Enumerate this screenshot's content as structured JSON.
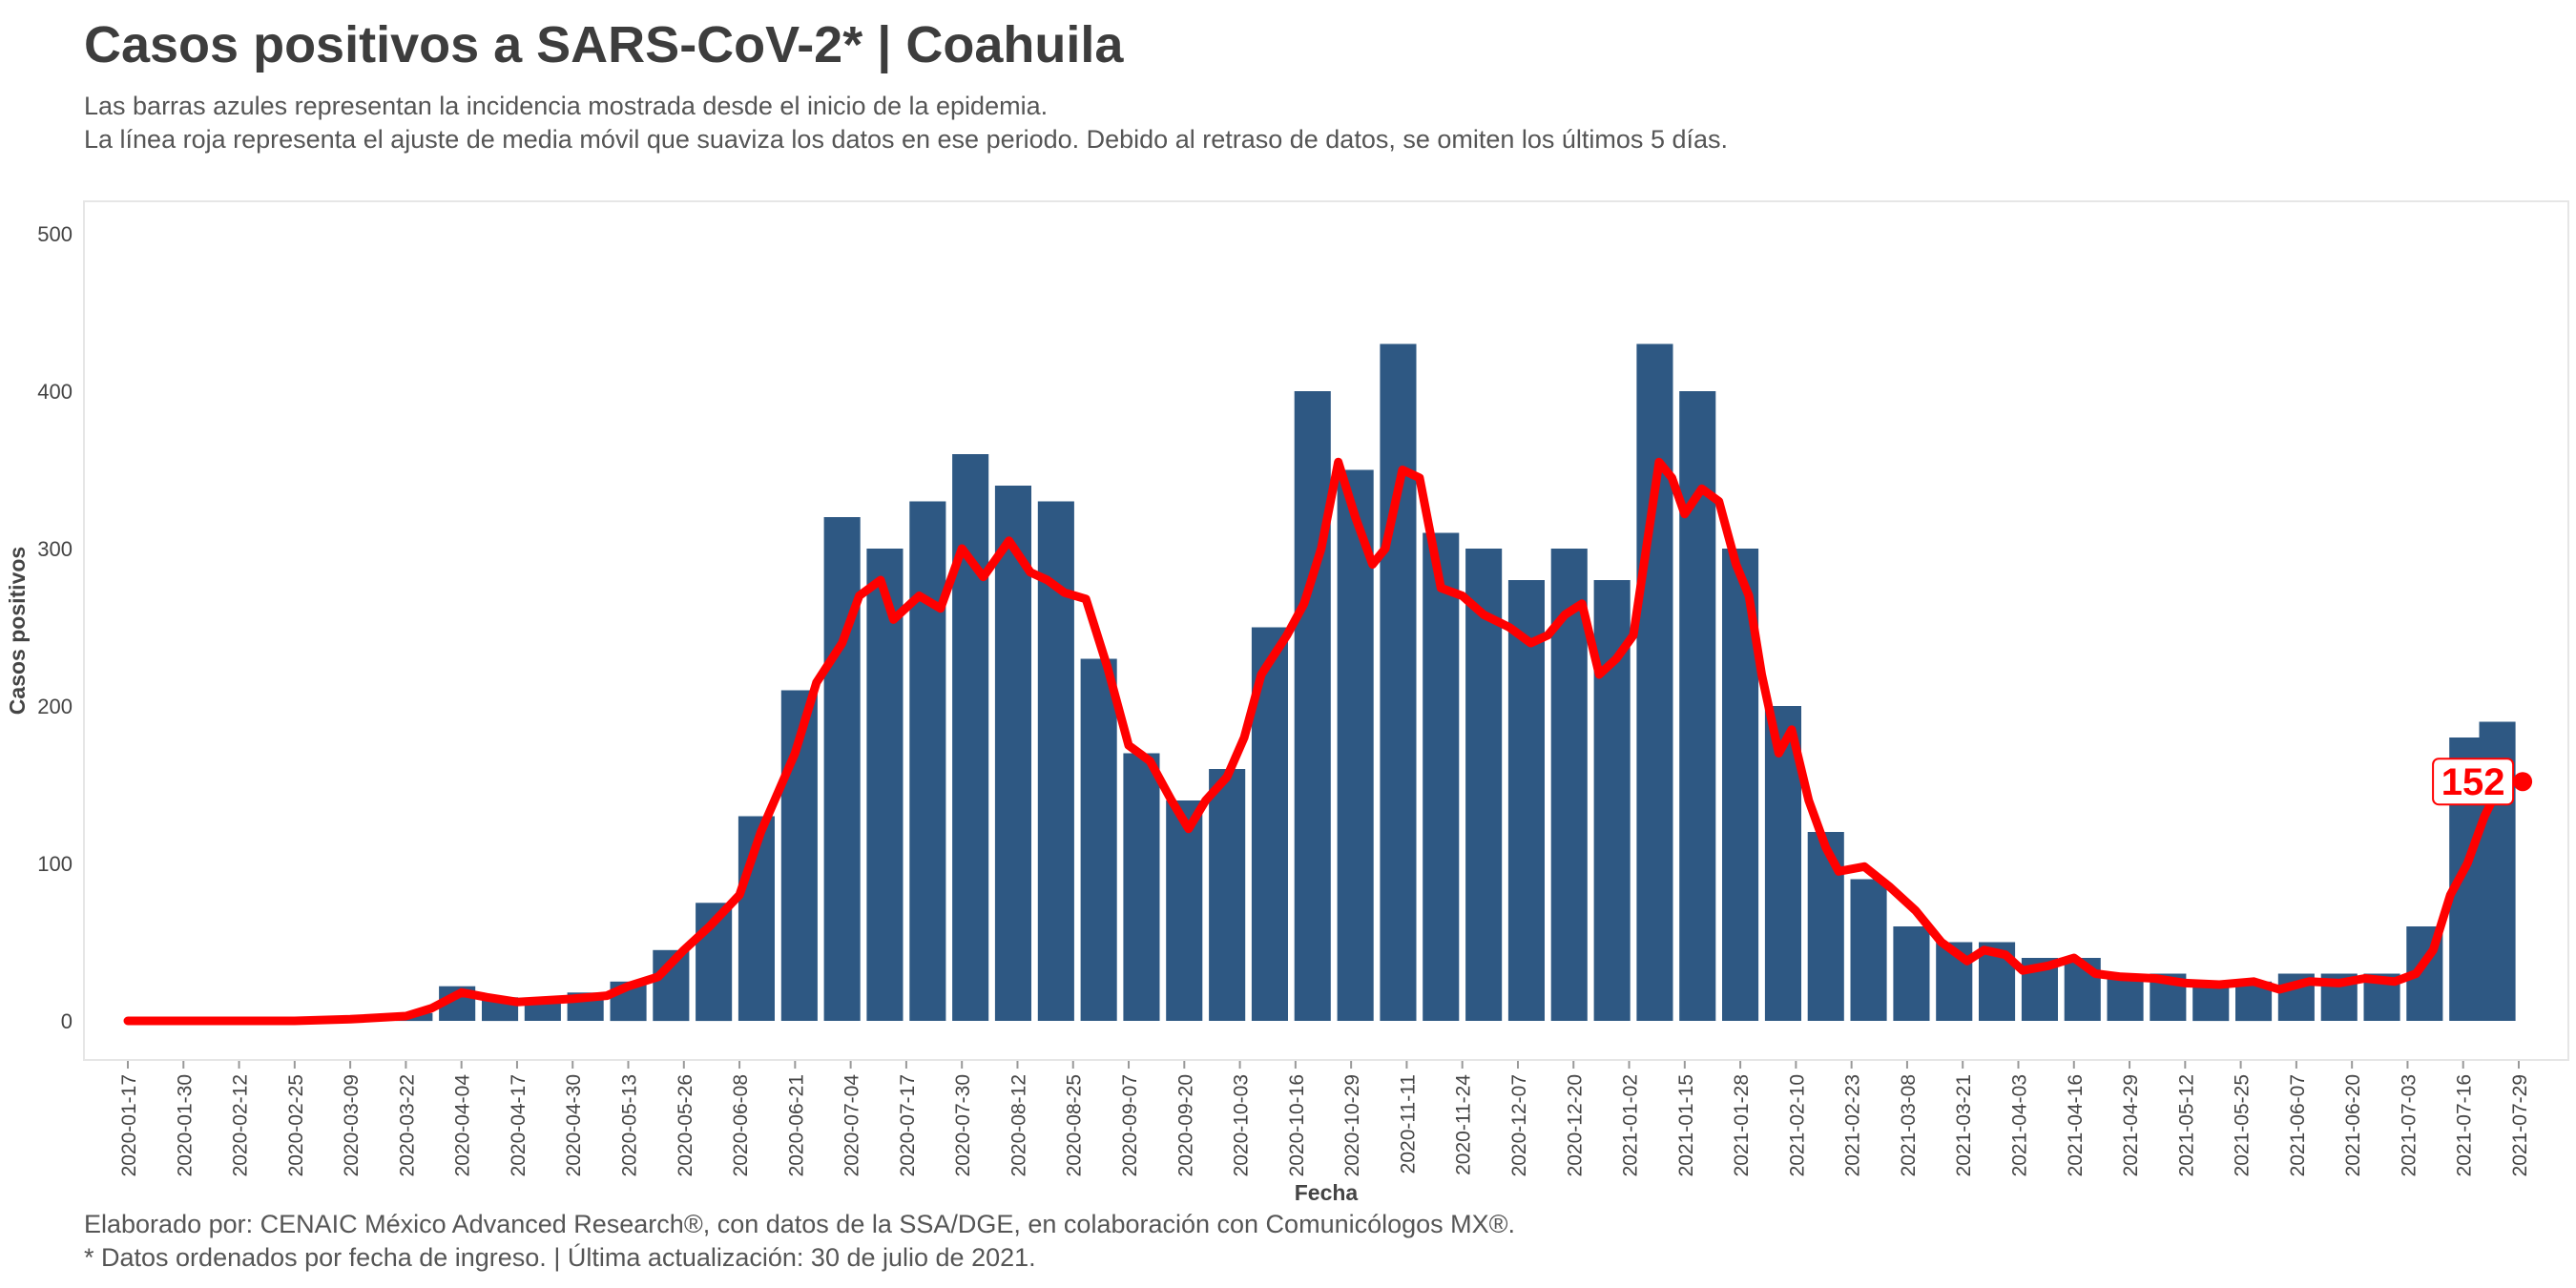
{
  "header": {
    "title": "Casos positivos a SARS-CoV-2* | Coahuila",
    "subtitle_1": "Las barras azules representan la incidencia mostrada desde el inicio de la epidemia.",
    "subtitle_2": "La línea roja representa el ajuste de media móvil que suaviza los datos en ese periodo. Debido al retraso de datos, se omiten los últimos 5 días."
  },
  "footer": {
    "caption_1": "Elaborado por: CENAIC México Advanced Research®, con datos de la SSA/DGE, en colaboración con Comunicólogos MX®.",
    "caption_2": "* Datos ordenados por fecha de ingreso. | Última actualización: 30 de julio de 2021."
  },
  "colors": {
    "bars": "#2e5883",
    "line": "#ff0000",
    "frame": "#e6e6e6",
    "text": "#444444"
  },
  "chart_data": {
    "type": "bar",
    "title": "Casos positivos a SARS-CoV-2* | Coahuila",
    "xlabel": "Fecha",
    "ylabel": "Casos positivos",
    "ylim": [
      0,
      520
    ],
    "yticks": [
      0,
      100,
      200,
      300,
      400,
      500
    ],
    "x_start": "2020-01-17",
    "x_end": "2021-07-29",
    "xticks": [
      "2020-01-17",
      "2020-01-30",
      "2020-02-12",
      "2020-02-25",
      "2020-03-09",
      "2020-03-22",
      "2020-04-04",
      "2020-04-17",
      "2020-04-30",
      "2020-05-13",
      "2020-05-26",
      "2020-06-08",
      "2020-06-21",
      "2020-07-04",
      "2020-07-17",
      "2020-07-30",
      "2020-08-12",
      "2020-08-25",
      "2020-09-07",
      "2020-09-20",
      "2020-10-03",
      "2020-10-16",
      "2020-10-29",
      "2020-11-11",
      "2020-11-24",
      "2020-12-07",
      "2020-12-20",
      "2021-01-02",
      "2021-01-15",
      "2021-01-28",
      "2021-02-10",
      "2021-02-23",
      "2021-03-08",
      "2021-03-21",
      "2021-04-03",
      "2021-04-16",
      "2021-04-29",
      "2021-05-12",
      "2021-05-25",
      "2021-06-07",
      "2021-06-20",
      "2021-07-03",
      "2021-07-16",
      "2021-07-29"
    ],
    "bars_approx_sampled_every_10_days": [
      {
        "date": "2020-03-24",
        "value": 5
      },
      {
        "date": "2020-04-03",
        "value": 22
      },
      {
        "date": "2020-04-13",
        "value": 15
      },
      {
        "date": "2020-04-23",
        "value": 12
      },
      {
        "date": "2020-05-03",
        "value": 18
      },
      {
        "date": "2020-05-13",
        "value": 25
      },
      {
        "date": "2020-05-23",
        "value": 45
      },
      {
        "date": "2020-06-02",
        "value": 75
      },
      {
        "date": "2020-06-12",
        "value": 130
      },
      {
        "date": "2020-06-22",
        "value": 210
      },
      {
        "date": "2020-07-02",
        "value": 320
      },
      {
        "date": "2020-07-12",
        "value": 300
      },
      {
        "date": "2020-07-22",
        "value": 330
      },
      {
        "date": "2020-08-01",
        "value": 360
      },
      {
        "date": "2020-08-11",
        "value": 340
      },
      {
        "date": "2020-08-21",
        "value": 330
      },
      {
        "date": "2020-08-31",
        "value": 230
      },
      {
        "date": "2020-09-10",
        "value": 170
      },
      {
        "date": "2020-09-20",
        "value": 140
      },
      {
        "date": "2020-09-30",
        "value": 160
      },
      {
        "date": "2020-10-10",
        "value": 250
      },
      {
        "date": "2020-10-20",
        "value": 400
      },
      {
        "date": "2020-10-30",
        "value": 350
      },
      {
        "date": "2020-11-09",
        "value": 430
      },
      {
        "date": "2020-11-19",
        "value": 310
      },
      {
        "date": "2020-11-29",
        "value": 300
      },
      {
        "date": "2020-12-09",
        "value": 280
      },
      {
        "date": "2020-12-19",
        "value": 300
      },
      {
        "date": "2020-12-29",
        "value": 280
      },
      {
        "date": "2021-01-08",
        "value": 430
      },
      {
        "date": "2021-01-18",
        "value": 400
      },
      {
        "date": "2021-01-28",
        "value": 300
      },
      {
        "date": "2021-02-07",
        "value": 200
      },
      {
        "date": "2021-02-17",
        "value": 120
      },
      {
        "date": "2021-02-27",
        "value": 90
      },
      {
        "date": "2021-03-09",
        "value": 60
      },
      {
        "date": "2021-03-19",
        "value": 50
      },
      {
        "date": "2021-03-29",
        "value": 50
      },
      {
        "date": "2021-04-08",
        "value": 40
      },
      {
        "date": "2021-04-18",
        "value": 40
      },
      {
        "date": "2021-04-28",
        "value": 30
      },
      {
        "date": "2021-05-08",
        "value": 30
      },
      {
        "date": "2021-05-18",
        "value": 25
      },
      {
        "date": "2021-05-28",
        "value": 25
      },
      {
        "date": "2021-06-07",
        "value": 30
      },
      {
        "date": "2021-06-17",
        "value": 30
      },
      {
        "date": "2021-06-27",
        "value": 30
      },
      {
        "date": "2021-07-07",
        "value": 60
      },
      {
        "date": "2021-07-17",
        "value": 180
      },
      {
        "date": "2021-07-24",
        "value": 190
      }
    ],
    "moving_average": [
      {
        "date": "2020-01-17",
        "value": 0
      },
      {
        "date": "2020-02-25",
        "value": 0
      },
      {
        "date": "2020-03-09",
        "value": 1
      },
      {
        "date": "2020-03-22",
        "value": 3
      },
      {
        "date": "2020-03-28",
        "value": 8
      },
      {
        "date": "2020-04-04",
        "value": 18
      },
      {
        "date": "2020-04-10",
        "value": 15
      },
      {
        "date": "2020-04-17",
        "value": 12
      },
      {
        "date": "2020-04-30",
        "value": 14
      },
      {
        "date": "2020-05-08",
        "value": 16
      },
      {
        "date": "2020-05-13",
        "value": 22
      },
      {
        "date": "2020-05-20",
        "value": 28
      },
      {
        "date": "2020-05-26",
        "value": 45
      },
      {
        "date": "2020-06-01",
        "value": 60
      },
      {
        "date": "2020-06-08",
        "value": 80
      },
      {
        "date": "2020-06-13",
        "value": 120
      },
      {
        "date": "2020-06-21",
        "value": 170
      },
      {
        "date": "2020-06-26",
        "value": 215
      },
      {
        "date": "2020-07-02",
        "value": 240
      },
      {
        "date": "2020-07-06",
        "value": 270
      },
      {
        "date": "2020-07-11",
        "value": 280
      },
      {
        "date": "2020-07-14",
        "value": 255
      },
      {
        "date": "2020-07-20",
        "value": 270
      },
      {
        "date": "2020-07-25",
        "value": 262
      },
      {
        "date": "2020-07-30",
        "value": 300
      },
      {
        "date": "2020-08-04",
        "value": 282
      },
      {
        "date": "2020-08-10",
        "value": 305
      },
      {
        "date": "2020-08-15",
        "value": 285
      },
      {
        "date": "2020-08-19",
        "value": 280
      },
      {
        "date": "2020-08-23",
        "value": 272
      },
      {
        "date": "2020-08-28",
        "value": 268
      },
      {
        "date": "2020-09-02",
        "value": 225
      },
      {
        "date": "2020-09-07",
        "value": 175
      },
      {
        "date": "2020-09-12",
        "value": 165
      },
      {
        "date": "2020-09-17",
        "value": 140
      },
      {
        "date": "2020-09-21",
        "value": 122
      },
      {
        "date": "2020-09-25",
        "value": 140
      },
      {
        "date": "2020-09-30",
        "value": 155
      },
      {
        "date": "2020-10-04",
        "value": 180
      },
      {
        "date": "2020-10-08",
        "value": 220
      },
      {
        "date": "2020-10-14",
        "value": 245
      },
      {
        "date": "2020-10-18",
        "value": 265
      },
      {
        "date": "2020-10-22",
        "value": 300
      },
      {
        "date": "2020-10-26",
        "value": 355
      },
      {
        "date": "2020-10-30",
        "value": 320
      },
      {
        "date": "2020-11-03",
        "value": 290
      },
      {
        "date": "2020-11-06",
        "value": 300
      },
      {
        "date": "2020-11-10",
        "value": 350
      },
      {
        "date": "2020-11-14",
        "value": 345
      },
      {
        "date": "2020-11-19",
        "value": 275
      },
      {
        "date": "2020-11-24",
        "value": 270
      },
      {
        "date": "2020-11-29",
        "value": 258
      },
      {
        "date": "2020-12-05",
        "value": 250
      },
      {
        "date": "2020-12-10",
        "value": 240
      },
      {
        "date": "2020-12-14",
        "value": 245
      },
      {
        "date": "2020-12-18",
        "value": 258
      },
      {
        "date": "2020-12-22",
        "value": 265
      },
      {
        "date": "2020-12-26",
        "value": 220
      },
      {
        "date": "2020-12-30",
        "value": 230
      },
      {
        "date": "2021-01-03",
        "value": 245
      },
      {
        "date": "2021-01-06",
        "value": 300
      },
      {
        "date": "2021-01-09",
        "value": 355
      },
      {
        "date": "2021-01-12",
        "value": 345
      },
      {
        "date": "2021-01-15",
        "value": 322
      },
      {
        "date": "2021-01-19",
        "value": 338
      },
      {
        "date": "2021-01-23",
        "value": 330
      },
      {
        "date": "2021-01-27",
        "value": 290
      },
      {
        "date": "2021-01-30",
        "value": 270
      },
      {
        "date": "2021-02-02",
        "value": 220
      },
      {
        "date": "2021-02-06",
        "value": 170
      },
      {
        "date": "2021-02-09",
        "value": 185
      },
      {
        "date": "2021-02-13",
        "value": 140
      },
      {
        "date": "2021-02-17",
        "value": 110
      },
      {
        "date": "2021-02-20",
        "value": 95
      },
      {
        "date": "2021-02-26",
        "value": 98
      },
      {
        "date": "2021-03-04",
        "value": 85
      },
      {
        "date": "2021-03-10",
        "value": 70
      },
      {
        "date": "2021-03-16",
        "value": 50
      },
      {
        "date": "2021-03-22",
        "value": 38
      },
      {
        "date": "2021-03-26",
        "value": 45
      },
      {
        "date": "2021-03-31",
        "value": 42
      },
      {
        "date": "2021-04-04",
        "value": 32
      },
      {
        "date": "2021-04-10",
        "value": 35
      },
      {
        "date": "2021-04-16",
        "value": 40
      },
      {
        "date": "2021-04-21",
        "value": 30
      },
      {
        "date": "2021-04-27",
        "value": 28
      },
      {
        "date": "2021-05-05",
        "value": 27
      },
      {
        "date": "2021-05-12",
        "value": 24
      },
      {
        "date": "2021-05-20",
        "value": 23
      },
      {
        "date": "2021-05-28",
        "value": 25
      },
      {
        "date": "2021-06-03",
        "value": 20
      },
      {
        "date": "2021-06-10",
        "value": 25
      },
      {
        "date": "2021-06-17",
        "value": 24
      },
      {
        "date": "2021-06-23",
        "value": 27
      },
      {
        "date": "2021-06-30",
        "value": 25
      },
      {
        "date": "2021-07-05",
        "value": 30
      },
      {
        "date": "2021-07-09",
        "value": 45
      },
      {
        "date": "2021-07-13",
        "value": 80
      },
      {
        "date": "2021-07-17",
        "value": 100
      },
      {
        "date": "2021-07-21",
        "value": 130
      },
      {
        "date": "2021-07-25",
        "value": 152
      }
    ],
    "last_value_label": "152",
    "grid": false
  }
}
